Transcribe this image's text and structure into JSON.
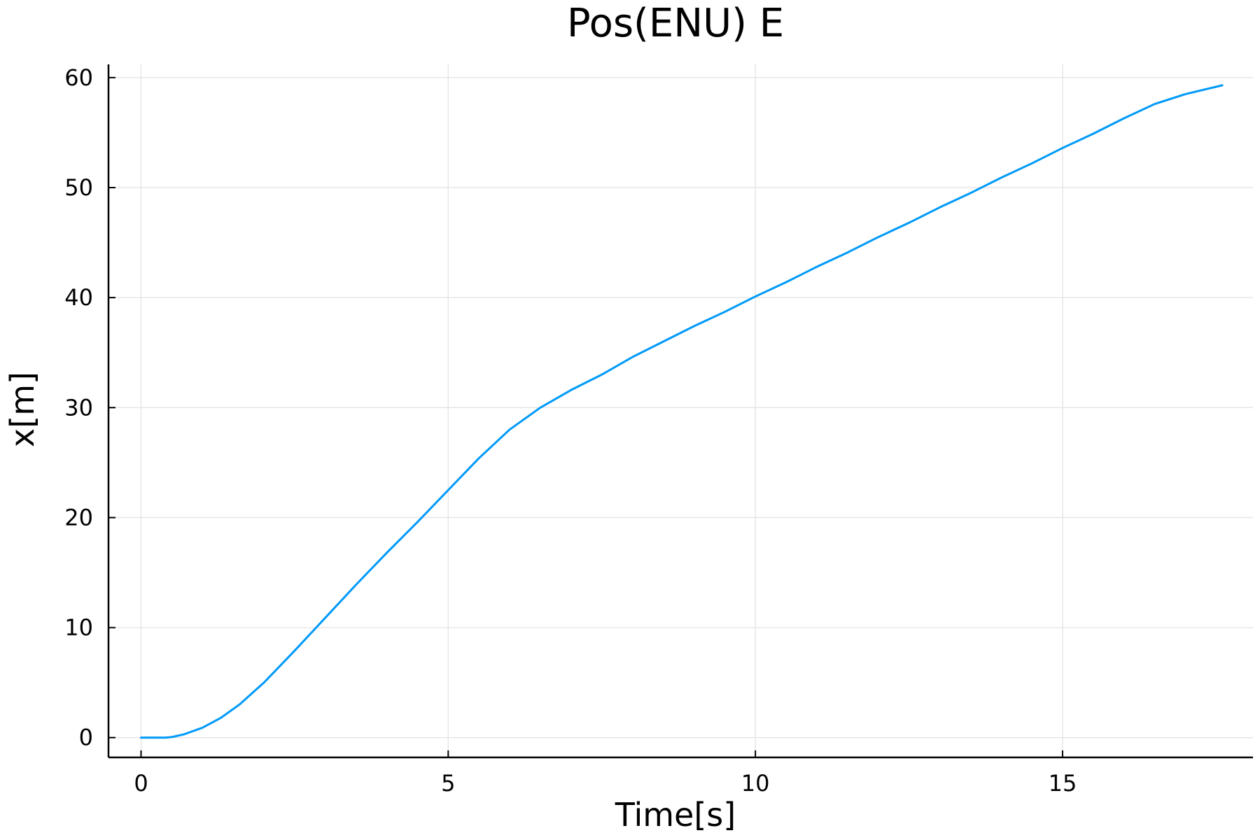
{
  "chart_data": {
    "type": "line",
    "title": "Pos(ENU) E",
    "xlabel": "Time[s]",
    "ylabel": "x[m]",
    "xlim": [
      -0.53,
      18.1
    ],
    "ylim": [
      -1.8,
      61.2
    ],
    "xticks": [
      0,
      5,
      10,
      15
    ],
    "xtick_labels": [
      "0",
      "5",
      "10",
      "15"
    ],
    "yticks": [
      0,
      10,
      20,
      30,
      40,
      50,
      60
    ],
    "ytick_labels": [
      "0",
      "10",
      "20",
      "30",
      "40",
      "50",
      "60"
    ],
    "grid": true,
    "legend": "none",
    "series": [
      {
        "color": "#009af9",
        "x": [
          0,
          0.2,
          0.4,
          0.5,
          0.7,
          1.0,
          1.3,
          1.6,
          2.0,
          2.5,
          3.0,
          3.5,
          4.0,
          4.5,
          5.0,
          5.5,
          6.0,
          6.5,
          7.0,
          7.5,
          8.0,
          8.5,
          9.0,
          9.5,
          10.0,
          10.5,
          11.0,
          11.5,
          12.0,
          12.5,
          13.0,
          13.5,
          14.0,
          14.5,
          15.0,
          15.5,
          16.0,
          16.5,
          17.0,
          17.6
        ],
        "y": [
          0,
          0,
          0,
          0.05,
          0.3,
          0.9,
          1.8,
          3.0,
          5.0,
          7.9,
          10.9,
          13.9,
          16.8,
          19.6,
          22.5,
          25.4,
          28.0,
          30.0,
          31.6,
          33.0,
          34.6,
          36.0,
          37.4,
          38.7,
          40.1,
          41.4,
          42.8,
          44.1,
          45.5,
          46.8,
          48.2,
          49.5,
          50.9,
          52.2,
          53.6,
          54.9,
          56.3,
          57.6,
          58.5,
          59.3
        ]
      }
    ]
  }
}
